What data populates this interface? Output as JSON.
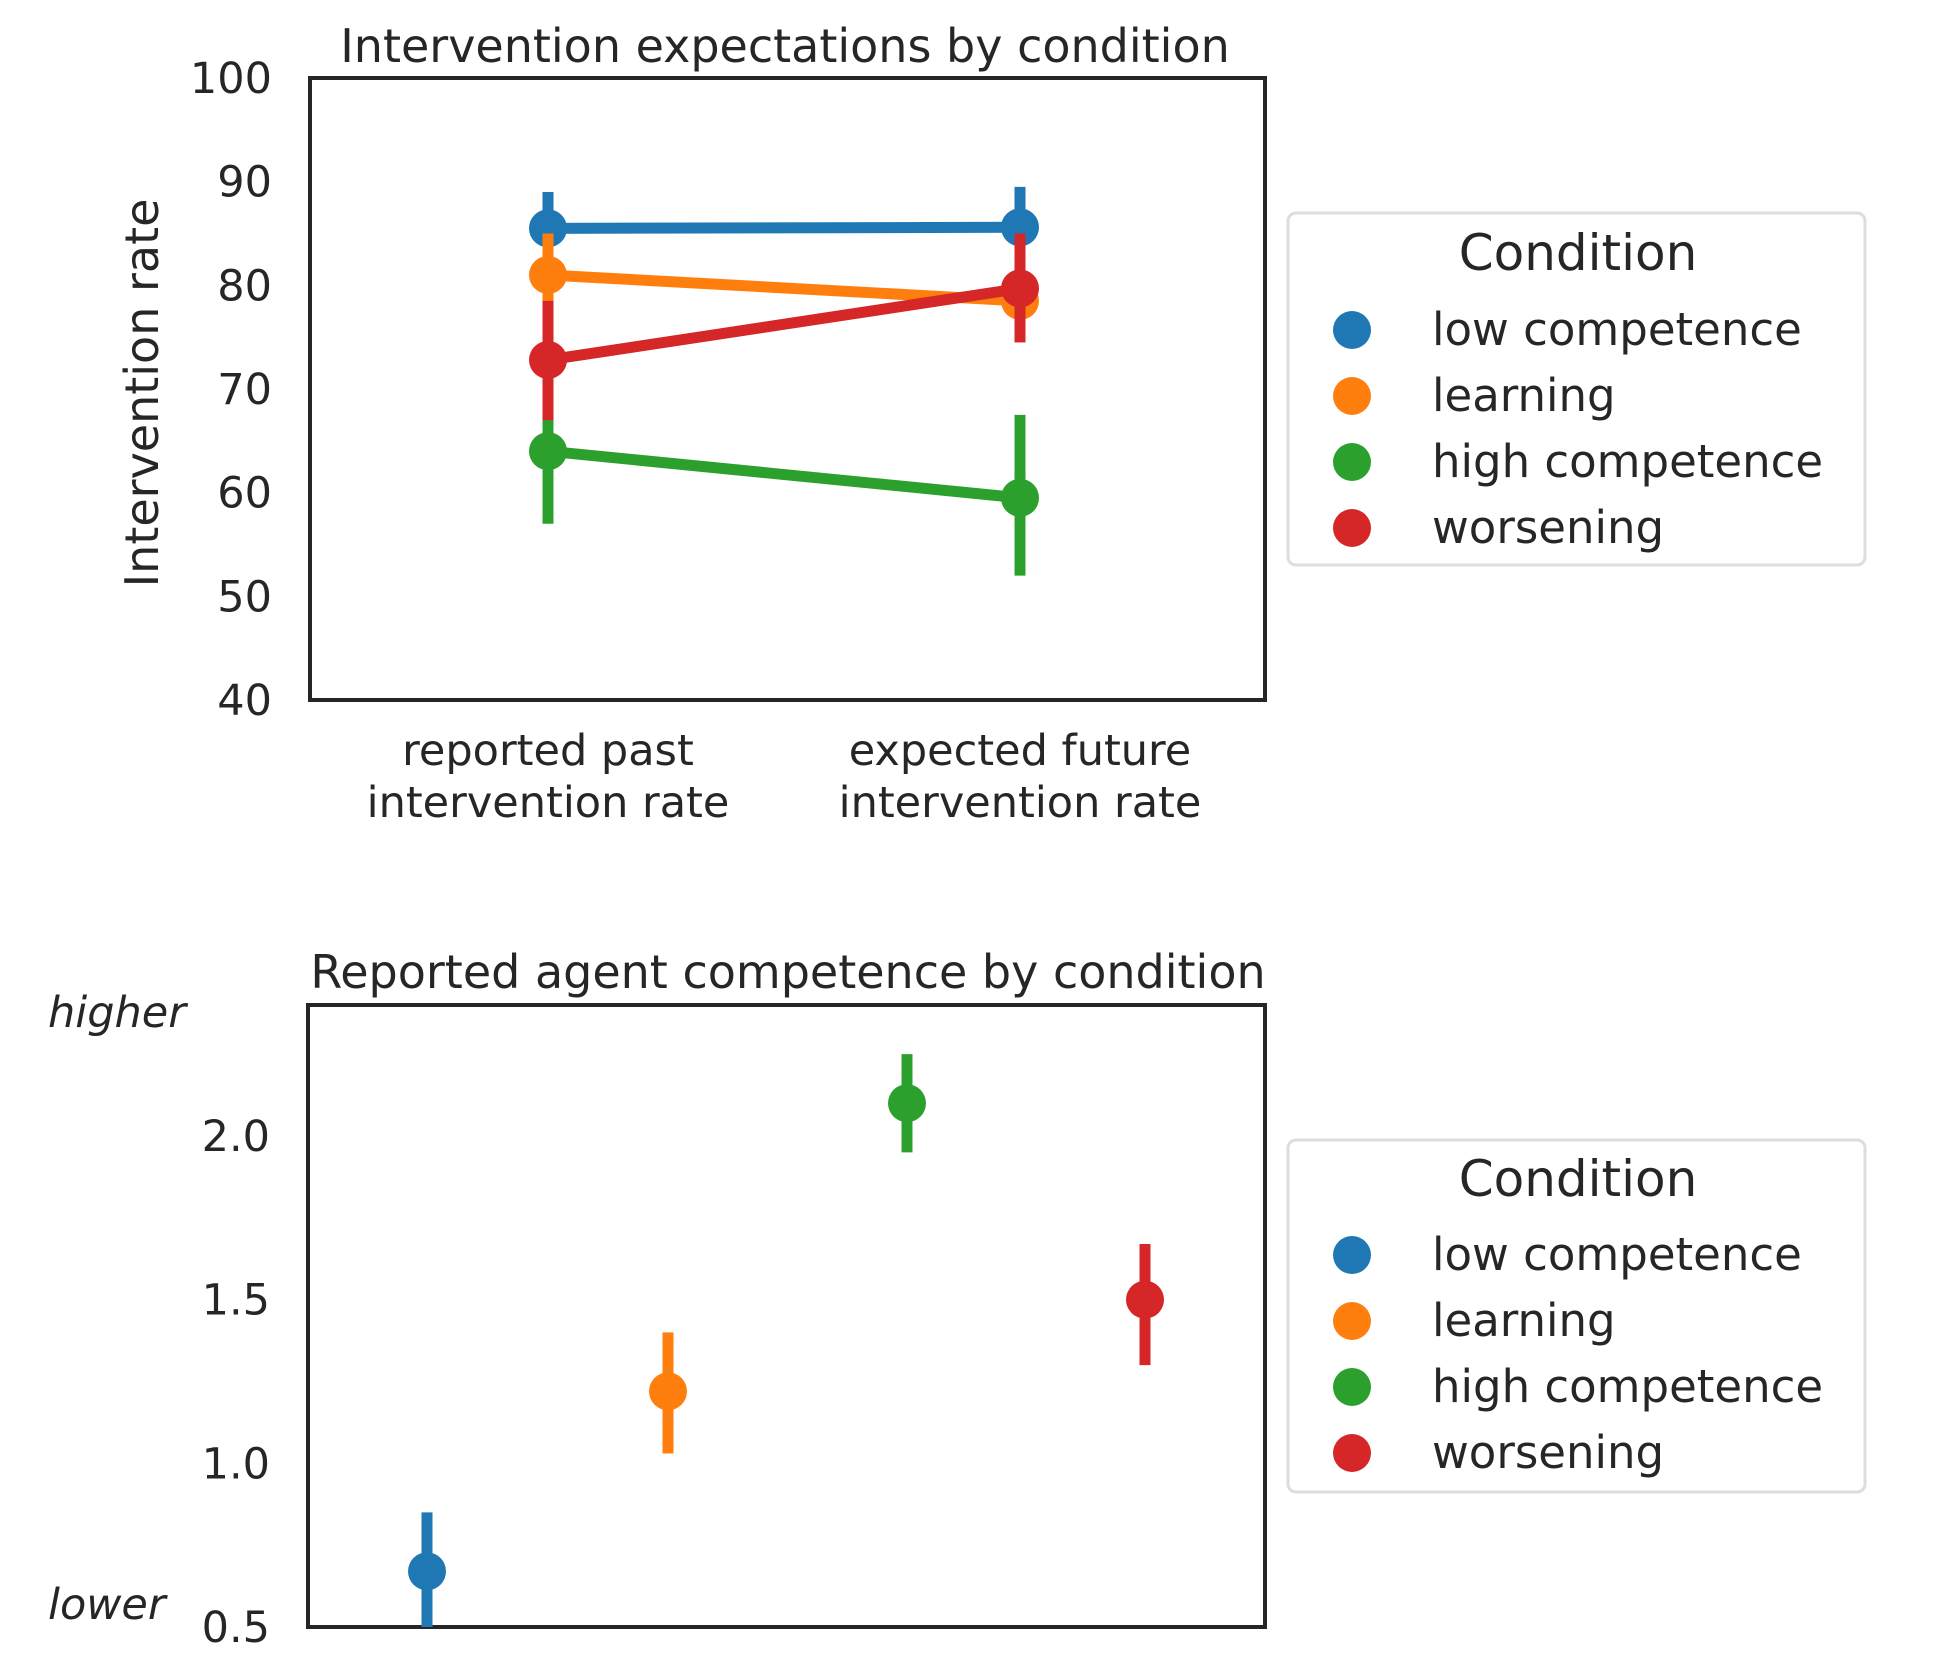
{
  "chart_data": [
    {
      "type": "line",
      "title": "Intervention expectations by condition",
      "xlabel": "",
      "ylabel": "Intervention rate",
      "categories": [
        "reported past\nintervention rate",
        "expected future\nintervention rate"
      ],
      "ylim": [
        40,
        100
      ],
      "yticks": [
        "40",
        "50",
        "60",
        "70",
        "80",
        "90",
        "100"
      ],
      "grid": false,
      "legend": {
        "title": "Condition",
        "position": "outside-right"
      },
      "series": [
        {
          "name": "low competence",
          "color": "#1f77b4",
          "values": [
            85.5,
            85.6
          ],
          "ci_low": [
            82,
            81.5
          ],
          "ci_high": [
            89,
            89.5
          ]
        },
        {
          "name": "learning",
          "color": "#ff7f0e",
          "values": [
            81,
            78.5
          ],
          "ci_low": [
            77,
            74.5
          ],
          "ci_high": [
            85,
            82.5
          ]
        },
        {
          "name": "high competence",
          "color": "#2ca02c",
          "values": [
            64,
            59.5
          ],
          "ci_low": [
            57,
            52
          ],
          "ci_high": [
            71,
            67.5
          ]
        },
        {
          "name": "worsening",
          "color": "#d62728",
          "values": [
            72.8,
            79.7
          ],
          "ci_low": [
            67,
            74.5
          ],
          "ci_high": [
            78.5,
            85
          ]
        }
      ]
    },
    {
      "type": "scatter",
      "title": "Reported agent competence by condition",
      "xlabel": "",
      "ylabel": "",
      "ylim": [
        0.5,
        2.4
      ],
      "yticks": [
        "0.5",
        "1.0",
        "1.5",
        "2.0"
      ],
      "y_annotations": {
        "top": "higher",
        "bottom": "lower"
      },
      "grid": false,
      "legend": {
        "title": "Condition",
        "position": "outside-right"
      },
      "series": [
        {
          "name": "low competence",
          "color": "#1f77b4",
          "values": [
            0.67
          ],
          "ci_low": [
            0.5
          ],
          "ci_high": [
            0.85
          ]
        },
        {
          "name": "learning",
          "color": "#ff7f0e",
          "values": [
            1.22
          ],
          "ci_low": [
            1.03
          ],
          "ci_high": [
            1.4
          ]
        },
        {
          "name": "high competence",
          "color": "#2ca02c",
          "values": [
            2.1
          ],
          "ci_low": [
            1.95
          ],
          "ci_high": [
            2.25
          ]
        },
        {
          "name": "worsening",
          "color": "#d62728",
          "values": [
            1.5
          ],
          "ci_low": [
            1.3
          ],
          "ci_high": [
            1.67
          ]
        }
      ]
    }
  ]
}
